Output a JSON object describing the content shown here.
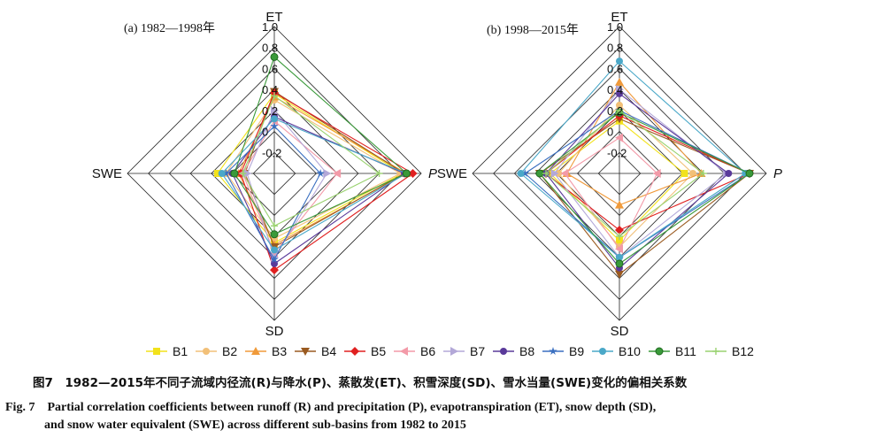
{
  "axes": [
    "ET",
    "P",
    "SD",
    "SWE"
  ],
  "axis_label_p": "P",
  "tick_labels": [
    "1.0",
    "0.8",
    "0.6",
    "0.4",
    "0.2",
    "0",
    "-0.2"
  ],
  "colors": {
    "B1": "#f2e21b",
    "B2": "#f2c078",
    "B3": "#f09a3a",
    "B4": "#9a5a20",
    "B5": "#e02020",
    "B6": "#f39aa8",
    "B7": "#b3a8d8",
    "B8": "#5a3a9a",
    "B9": "#3a6fc0",
    "B10": "#4aa8c8",
    "B11": "#3a9a3a",
    "B12": "#9ad270"
  },
  "chart_data": [
    {
      "type": "radar",
      "title": "(a) 1982—1998年",
      "axes": [
        "ET",
        "P",
        "SD",
        "SWE"
      ],
      "rlim": [
        -0.4,
        1.0
      ],
      "ticks": [
        1.0,
        0.8,
        0.6,
        0.4,
        0.2,
        0,
        -0.2
      ],
      "series": [
        {
          "name": "B1",
          "values": [
            0.36,
            0.82,
            0.26,
            0.14
          ]
        },
        {
          "name": "B2",
          "values": [
            0.3,
            0.8,
            0.22,
            0.06
          ]
        },
        {
          "name": "B3",
          "values": [
            0.33,
            0.86,
            0.28,
            -0.06
          ]
        },
        {
          "name": "B4",
          "values": [
            0.38,
            0.84,
            0.3,
            -0.12
          ]
        },
        {
          "name": "B5",
          "values": [
            0.37,
            0.92,
            0.52,
            -0.08
          ]
        },
        {
          "name": "B6",
          "values": [
            0.1,
            0.2,
            0.36,
            -0.1
          ]
        },
        {
          "name": "B7",
          "values": [
            0.2,
            0.1,
            0.4,
            -0.14
          ]
        },
        {
          "name": "B8",
          "values": [
            0.14,
            0.84,
            0.46,
            0.0
          ]
        },
        {
          "name": "B9",
          "values": [
            0.05,
            0.04,
            0.42,
            0.06
          ]
        },
        {
          "name": "B10",
          "values": [
            0.12,
            0.86,
            0.33,
            0.1
          ]
        },
        {
          "name": "B11",
          "values": [
            0.71,
            0.86,
            0.18,
            -0.02
          ]
        },
        {
          "name": "B12",
          "values": [
            0.34,
            0.6,
            0.1,
            -0.1
          ]
        }
      ]
    },
    {
      "type": "radar",
      "title": "(b) 1998—2015年",
      "axes": [
        "ET",
        "P",
        "SD",
        "SWE"
      ],
      "rlim": [
        -0.4,
        1.0
      ],
      "ticks": [
        1.0,
        0.8,
        0.6,
        0.4,
        0.2,
        0,
        -0.2
      ],
      "series": [
        {
          "name": "B1",
          "values": [
            0.1,
            0.22,
            0.24,
            0.26
          ]
        },
        {
          "name": "B2",
          "values": [
            0.25,
            0.3,
            0.3,
            0.18
          ]
        },
        {
          "name": "B3",
          "values": [
            0.47,
            0.38,
            -0.1,
            0.1
          ]
        },
        {
          "name": "B4",
          "values": [
            0.12,
            0.84,
            0.56,
            0.36
          ]
        },
        {
          "name": "B5",
          "values": [
            0.15,
            0.84,
            0.14,
            0.3
          ]
        },
        {
          "name": "B6",
          "values": [
            -0.06,
            -0.04,
            0.32,
            0.12
          ]
        },
        {
          "name": "B7",
          "values": [
            0.4,
            0.62,
            0.4,
            0.22
          ]
        },
        {
          "name": "B8",
          "values": [
            0.36,
            0.64,
            0.5,
            0.3
          ]
        },
        {
          "name": "B9",
          "values": [
            0.2,
            0.84,
            0.4,
            0.5
          ]
        },
        {
          "name": "B10",
          "values": [
            0.67,
            0.8,
            0.4,
            0.54
          ]
        },
        {
          "name": "B11",
          "values": [
            0.18,
            0.84,
            0.46,
            0.36
          ]
        },
        {
          "name": "B12",
          "values": [
            0.2,
            0.4,
            0.2,
            0.3
          ]
        }
      ]
    }
  ],
  "legend": [
    "B1",
    "B2",
    "B3",
    "B4",
    "B5",
    "B6",
    "B7",
    "B8",
    "B9",
    "B10",
    "B11",
    "B12"
  ],
  "caption": {
    "cn": "图7　1982—2015年不同子流域内径流(R)与降水(P)、蒸散发(ET)、积雪深度(SD)、雪水当量(SWE)变化的偏相关系数",
    "en_line1": "Fig. 7　Partial correlation coefficients between runoff (R) and precipitation (P), evapotranspiration (ET), snow depth (SD),",
    "en_line2": "and snow water equivalent (SWE) across different sub-basins from 1982 to 2015"
  }
}
